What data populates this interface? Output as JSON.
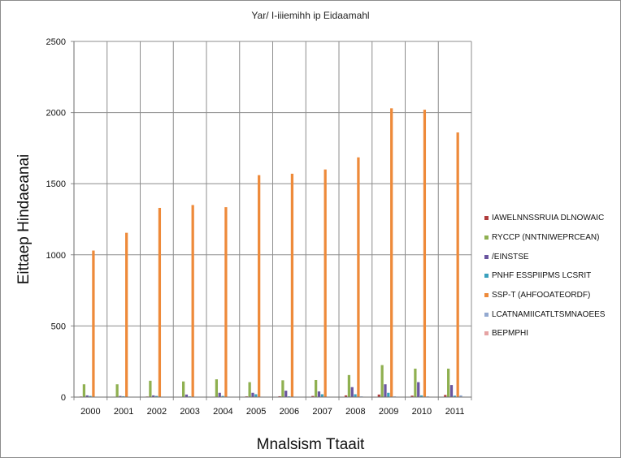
{
  "chart_data": {
    "type": "bar",
    "title": "Yar/ I-iiiemihh ip  Eidaamahl",
    "xlabel": "Mnalsism Ttaait",
    "ylabel": "Eittaep Hindaeanai",
    "ylim": [
      0,
      2500
    ],
    "yticks": [
      "0",
      "500",
      "1000",
      "1500",
      "2000",
      "2500"
    ],
    "grid": true,
    "legend_position": "right",
    "categories": [
      "2000",
      "2001",
      "2002",
      "2003",
      "2004",
      "2005",
      "2006",
      "2007",
      "2008",
      "2009",
      "2010",
      "2011"
    ],
    "series": [
      {
        "name": "IAWELNNSSRUIA DLNOWAIC",
        "color": "#b03c3c",
        "values": [
          4,
          3,
          4,
          2,
          3,
          5,
          6,
          8,
          12,
          18,
          10,
          15
        ]
      },
      {
        "name": "RYCCP  (NNTNIWEPRCEAN)",
        "color": "#8fb050",
        "values": [
          90,
          90,
          115,
          110,
          125,
          105,
          118,
          120,
          155,
          225,
          200,
          200
        ]
      },
      {
        "name": "/EINSTSE",
        "color": "#6a55a0",
        "values": [
          12,
          8,
          12,
          18,
          30,
          30,
          45,
          40,
          70,
          90,
          105,
          85
        ]
      },
      {
        "name": "PNHF ESSPIIPMS LCSRIT",
        "color": "#3aa0bd",
        "values": [
          8,
          6,
          8,
          5,
          8,
          20,
          5,
          20,
          20,
          30,
          12,
          10
        ]
      },
      {
        "name": "SSP-T  (AHFOOATEORDF)",
        "color": "#ee8a3a",
        "values": [
          1030,
          1155,
          1330,
          1350,
          1335,
          1560,
          1570,
          1600,
          1685,
          2030,
          2020,
          1860
        ]
      },
      {
        "name": "LCATNAMIICATLTSMNAOEES",
        "color": "#93a9d0",
        "values": [
          3,
          2,
          3,
          2,
          3,
          3,
          3,
          3,
          5,
          5,
          5,
          12
        ]
      },
      {
        "name": "BEPMPHI",
        "color": "#e6a3a3",
        "values": [
          2,
          1,
          2,
          1,
          2,
          2,
          2,
          2,
          3,
          3,
          3,
          3
        ]
      }
    ]
  }
}
